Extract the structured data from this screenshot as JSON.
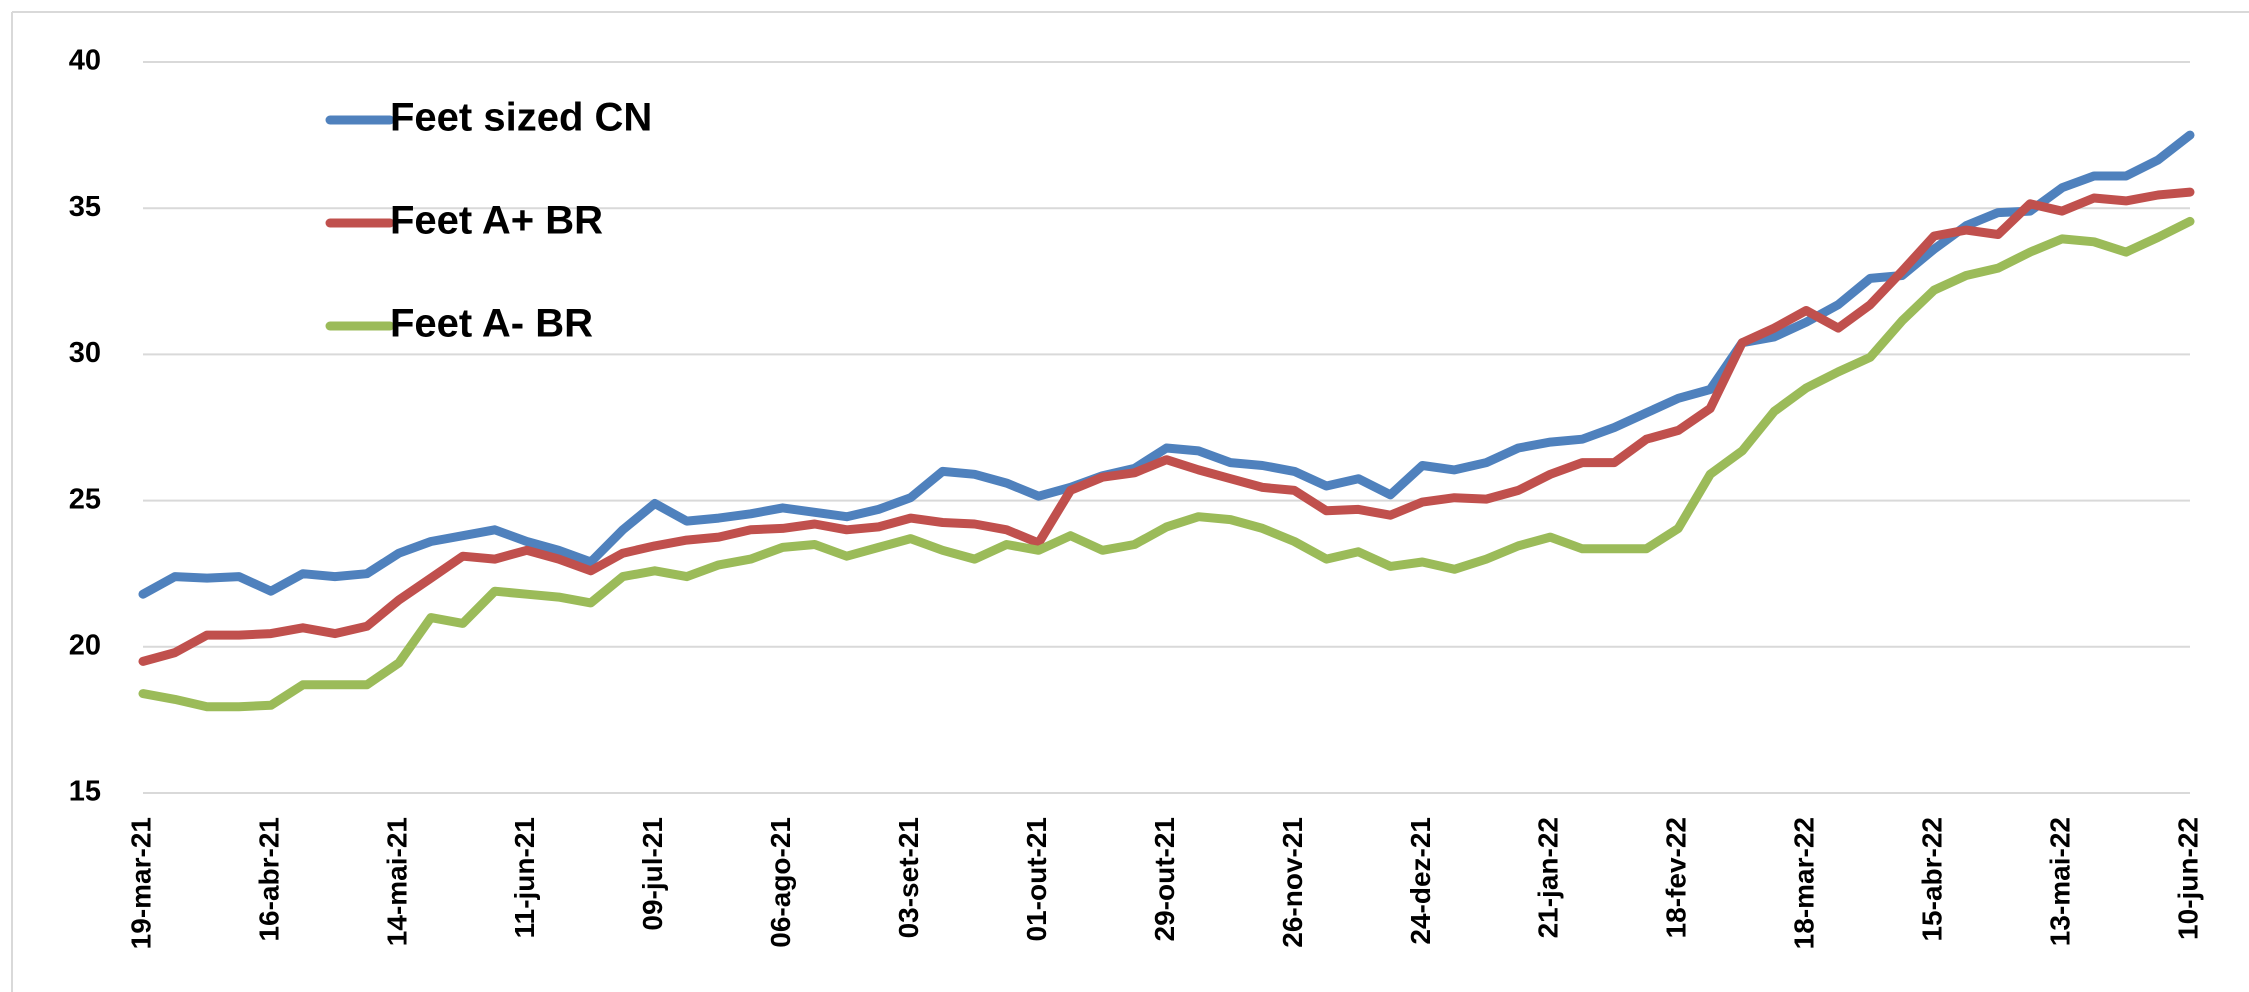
{
  "chart_data": {
    "type": "line",
    "categories": [
      "19-mar-21",
      null,
      null,
      null,
      "16-abr-21",
      null,
      null,
      null,
      "14-mai-21",
      null,
      null,
      null,
      "11-jun-21",
      null,
      null,
      null,
      "09-jul-21",
      null,
      null,
      null,
      "06-ago-21",
      null,
      null,
      null,
      "03-set-21",
      null,
      null,
      null,
      "01-out-21",
      null,
      null,
      null,
      "29-out-21",
      null,
      null,
      null,
      "26-nov-21",
      null,
      null,
      null,
      "24-dez-21",
      null,
      null,
      null,
      "21-jan-22",
      null,
      null,
      null,
      "18-fev-22",
      null,
      null,
      null,
      "18-mar-22",
      null,
      null,
      null,
      "15-abr-22",
      null,
      null,
      null,
      "13-mai-22",
      null,
      null,
      null,
      "10-jun-22"
    ],
    "series": [
      {
        "name": "Feet sized CN",
        "color": "#4f81bd",
        "values": [
          21.8,
          22.4,
          22.35,
          22.4,
          21.9,
          22.5,
          22.4,
          22.5,
          23.2,
          23.6,
          23.8,
          24.0,
          23.6,
          23.3,
          22.9,
          24.0,
          24.9,
          24.3,
          24.4,
          24.55,
          24.75,
          24.6,
          24.45,
          24.7,
          25.1,
          26.0,
          25.9,
          25.6,
          25.15,
          25.45,
          25.85,
          26.1,
          26.8,
          26.7,
          26.3,
          26.2,
          26.0,
          25.5,
          25.75,
          25.2,
          26.2,
          26.05,
          26.3,
          26.8,
          27.0,
          27.1,
          27.5,
          28.0,
          28.5,
          28.8,
          30.4,
          30.6,
          31.1,
          31.7,
          32.6,
          32.7,
          33.6,
          34.4,
          34.85,
          34.9,
          35.7,
          36.1,
          36.1,
          36.65,
          37.5
        ]
      },
      {
        "name": "Feet A+ BR",
        "color": "#c0504d",
        "values": [
          19.5,
          19.8,
          20.4,
          20.4,
          20.45,
          20.65,
          20.45,
          20.7,
          21.6,
          22.35,
          23.1,
          23.0,
          23.3,
          23.0,
          22.6,
          23.2,
          23.45,
          23.65,
          23.75,
          24.0,
          24.05,
          24.2,
          24.0,
          24.1,
          24.4,
          24.25,
          24.2,
          24.0,
          23.55,
          25.35,
          25.8,
          25.95,
          26.4,
          26.05,
          25.75,
          25.45,
          25.35,
          24.65,
          24.7,
          24.5,
          24.95,
          25.1,
          25.05,
          25.35,
          25.9,
          26.3,
          26.3,
          27.1,
          27.4,
          28.15,
          30.4,
          30.9,
          31.5,
          30.9,
          31.7,
          32.85,
          34.05,
          34.25,
          34.1,
          35.15,
          34.9,
          35.35,
          35.25,
          35.45,
          35.55
        ]
      },
      {
        "name": "Feet A- BR",
        "color": "#9bbb59",
        "values": [
          18.4,
          18.2,
          17.95,
          17.95,
          18.0,
          18.7,
          18.7,
          18.7,
          19.45,
          21.0,
          20.8,
          21.9,
          21.8,
          21.7,
          21.5,
          22.4,
          22.6,
          22.4,
          22.8,
          23.0,
          23.4,
          23.5,
          23.1,
          23.4,
          23.7,
          23.3,
          23.0,
          23.5,
          23.3,
          23.8,
          23.3,
          23.5,
          24.1,
          24.45,
          24.35,
          24.05,
          23.6,
          23.0,
          23.25,
          22.75,
          22.9,
          22.65,
          23.0,
          23.45,
          23.75,
          23.35,
          23.35,
          23.35,
          24.05,
          25.9,
          26.7,
          28.05,
          28.85,
          29.4,
          29.9,
          31.15,
          32.2,
          32.7,
          32.95,
          33.5,
          33.95,
          33.85,
          33.5,
          34.0,
          34.55
        ]
      }
    ],
    "ylim": [
      15,
      40
    ],
    "yticks": [
      15,
      20,
      25,
      30,
      35,
      40
    ],
    "grid": true,
    "legend": "upper left"
  }
}
